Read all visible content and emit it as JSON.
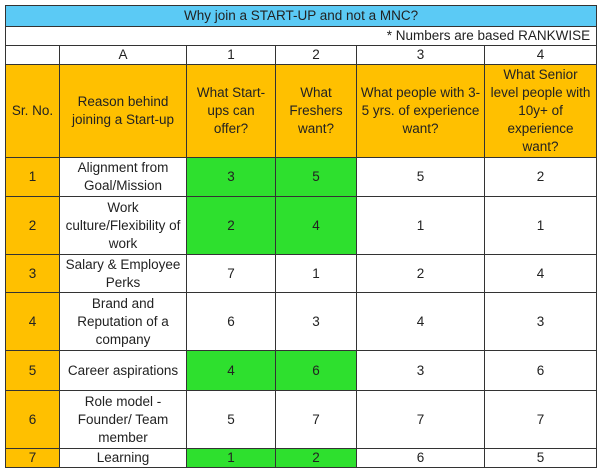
{
  "title": "Why join a START-UP and not a MNC?",
  "note": "* Numbers are based RANKWISE",
  "column_letters": [
    "",
    "A",
    "1",
    "2",
    "3",
    "4"
  ],
  "headers": [
    "Sr. No.",
    "Reason behind joining a Start-up",
    "What Start-ups can offer?",
    "What Freshers want?",
    "What people with 3-5 yrs. of experience want?",
    "What Senior level people with 10y+ of experience want?"
  ],
  "highlight_color": "#2ee02e",
  "header_color": "#ffc000",
  "title_color": "#5bcaf5",
  "rows": [
    {
      "sr": "1",
      "reason": "Alignment from Goal/Mission",
      "startup": "3",
      "freshers": "5",
      "mid": "5",
      "senior": "2",
      "hl": true
    },
    {
      "sr": "2",
      "reason": "Work culture/Flexibility of work",
      "startup": "2",
      "freshers": "4",
      "mid": "1",
      "senior": "1",
      "hl": true
    },
    {
      "sr": "3",
      "reason": "Salary & Employee Perks",
      "startup": "7",
      "freshers": "1",
      "mid": "2",
      "senior": "4",
      "hl": false
    },
    {
      "sr": "4",
      "reason": "Brand and Reputation of  a company",
      "startup": "6",
      "freshers": "3",
      "mid": "4",
      "senior": "3",
      "hl": false
    },
    {
      "sr": "5",
      "reason": "Career aspirations",
      "startup": "4",
      "freshers": "6",
      "mid": "3",
      "senior": "6",
      "hl": true
    },
    {
      "sr": "6",
      "reason": "Role model - Founder/ Team member",
      "startup": "5",
      "freshers": "7",
      "mid": "7",
      "senior": "7",
      "hl": false
    },
    {
      "sr": "7",
      "reason": "Learning",
      "startup": "1",
      "freshers": "2",
      "mid": "6",
      "senior": "5",
      "hl": true
    }
  ]
}
